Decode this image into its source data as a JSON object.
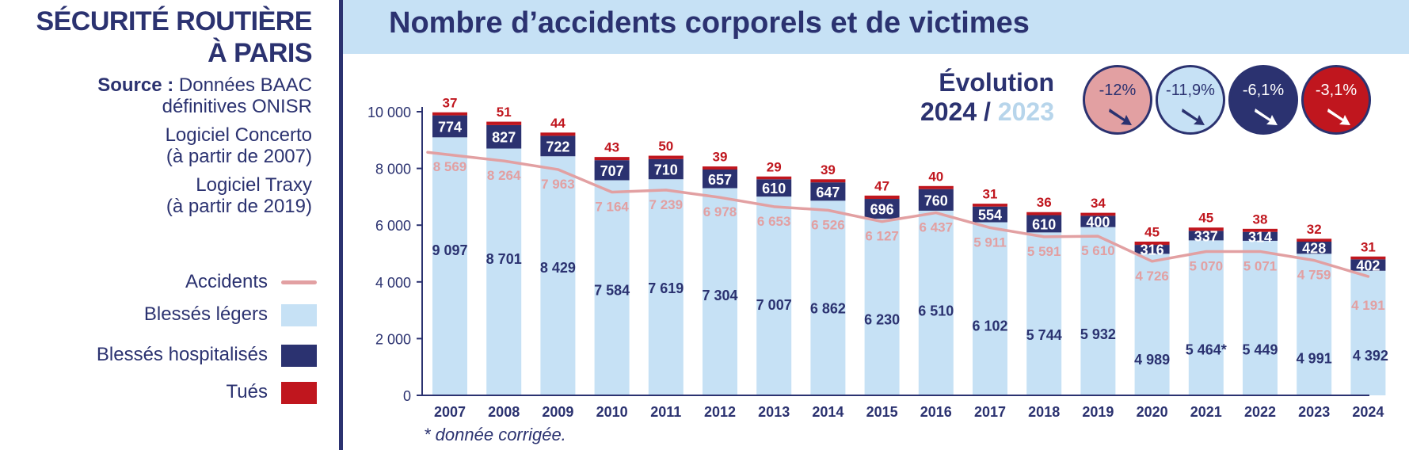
{
  "left": {
    "title_line1": "SÉCURITÉ ROUTIÈRE",
    "title_line2": "À PARIS",
    "source_label": "Source :",
    "source_line1": "Données BAAC",
    "source_line2": "définitives ONISR",
    "concerto_line1": "Logiciel Concerto",
    "concerto_line2": "(à partir de 2007)",
    "traxy_line1": "Logiciel Traxy",
    "traxy_line2": "(à partir de 2019)"
  },
  "legend": [
    {
      "label": "Accidents",
      "kind": "line",
      "color": "#e2a0a2"
    },
    {
      "label": "Blessés légers",
      "kind": "box",
      "color": "#c6e1f5"
    },
    {
      "label": "Blessés hospitalisés",
      "kind": "box",
      "color": "#2b3270"
    },
    {
      "label": "Tués",
      "kind": "box",
      "color": "#c0161e"
    }
  ],
  "header": {
    "title": "Nombre d’accidents corporels et de victimes"
  },
  "evolution": {
    "title": "Évolution",
    "year_current": "2024",
    "separator": " / ",
    "year_previous": "2023",
    "badges": [
      {
        "value": "-12%",
        "bg": "#e2a0a2",
        "fg": "#2b3270",
        "arrow": "#2b3270",
        "icon": "arrow-down-right-icon"
      },
      {
        "value": "-11,9%",
        "bg": "#c6e1f5",
        "fg": "#2b3270",
        "arrow": "#2b3270",
        "icon": "arrow-down-right-icon"
      },
      {
        "value": "-6,1%",
        "bg": "#2b3270",
        "fg": "#ffffff",
        "arrow": "#ffffff",
        "icon": "arrow-down-right-icon"
      },
      {
        "value": "-3,1%",
        "bg": "#c0161e",
        "fg": "#ffffff",
        "arrow": "#ffffff",
        "icon": "arrow-down-right-icon"
      }
    ]
  },
  "footnote": "* donnée corrigée.",
  "chart_data": {
    "type": "bar",
    "stacked": true,
    "categories": [
      "2007",
      "2008",
      "2009",
      "2010",
      "2011",
      "2012",
      "2013",
      "2014",
      "2015",
      "2016",
      "2017",
      "2018",
      "2019",
      "2020",
      "2021",
      "2022",
      "2023",
      "2024"
    ],
    "ylim": [
      0,
      10000
    ],
    "yticks": [
      0,
      2000,
      4000,
      6000,
      8000,
      10000
    ],
    "ytick_labels": [
      "0",
      "2 000",
      "4 000",
      "6 000",
      "8 000",
      "10 000"
    ],
    "series": [
      {
        "name": "Blessés légers",
        "values": [
          9097,
          8701,
          8429,
          7584,
          7619,
          7304,
          7007,
          6862,
          6230,
          6510,
          6102,
          5744,
          5932,
          4989,
          5464,
          5449,
          4991,
          4392
        ],
        "labels": [
          "9 097",
          "8 701",
          "8 429",
          "7 584",
          "7 619",
          "7 304",
          "7 007",
          "6 862",
          "6 230",
          "6 510",
          "6 102",
          "5 744",
          "5 932",
          "4 989",
          "5 464*",
          "5 449",
          "4 991",
          "4 392"
        ]
      },
      {
        "name": "Blessés hospitalisés",
        "values": [
          774,
          827,
          722,
          707,
          710,
          657,
          610,
          647,
          696,
          760,
          554,
          610,
          400,
          316,
          337,
          314,
          428,
          402
        ],
        "labels": [
          "774",
          "827",
          "722",
          "707",
          "710",
          "657",
          "610",
          "647",
          "696",
          "760",
          "554",
          "610",
          "400",
          "316",
          "337",
          "314",
          "428",
          "402"
        ]
      },
      {
        "name": "Tués",
        "values": [
          37,
          51,
          44,
          43,
          50,
          39,
          29,
          39,
          47,
          40,
          31,
          36,
          34,
          45,
          45,
          38,
          32,
          31
        ],
        "labels": [
          "37",
          "51",
          "44",
          "43",
          "50",
          "39",
          "29",
          "39",
          "47",
          "40",
          "31",
          "36",
          "34",
          "45",
          "45",
          "38",
          "32",
          "31"
        ]
      }
    ],
    "line": {
      "name": "Accidents",
      "values": [
        8569,
        8264,
        7963,
        7164,
        7239,
        6978,
        6653,
        6526,
        6127,
        6437,
        5911,
        5591,
        5610,
        4726,
        5070,
        5071,
        4759,
        4191
      ],
      "labels": [
        "8 569",
        "8 264",
        "7 963",
        "7 164",
        "7 239",
        "6 978",
        "6 653",
        "6 526",
        "6 127",
        "6 437",
        "5 911",
        "5 591",
        "5 610",
        "4 726",
        "5 070",
        "5 071",
        "4 759",
        "4 191"
      ]
    },
    "colors": {
      "light": "#c6e1f5",
      "hosp": "#2b3270",
      "killed": "#c0161e",
      "line": "#e2a0a2",
      "axis": "#2b3270"
    }
  }
}
